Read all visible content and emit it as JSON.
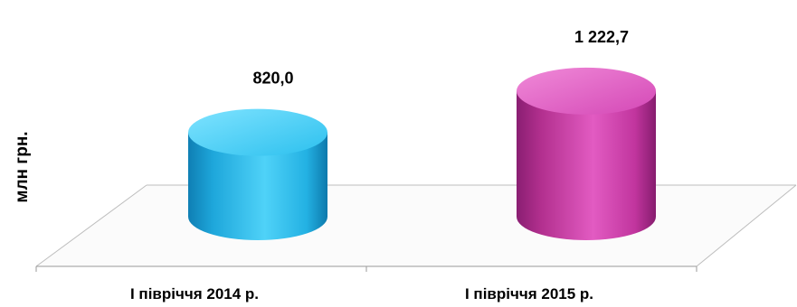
{
  "chart_data": {
    "type": "bar",
    "style": "3d-cylinder",
    "title": "",
    "xlabel": "",
    "ylabel": "млн грн.",
    "categories": [
      "І півріччя 2014 р.",
      "І півріччя 2015 р."
    ],
    "values": [
      820.0,
      1222.7
    ],
    "data_labels": [
      "820,0",
      "1 222,7"
    ],
    "colors": [
      "#22b8e6",
      "#cc3aa8"
    ],
    "ylim": [
      0,
      1300
    ],
    "grid": false,
    "legend": "none"
  }
}
